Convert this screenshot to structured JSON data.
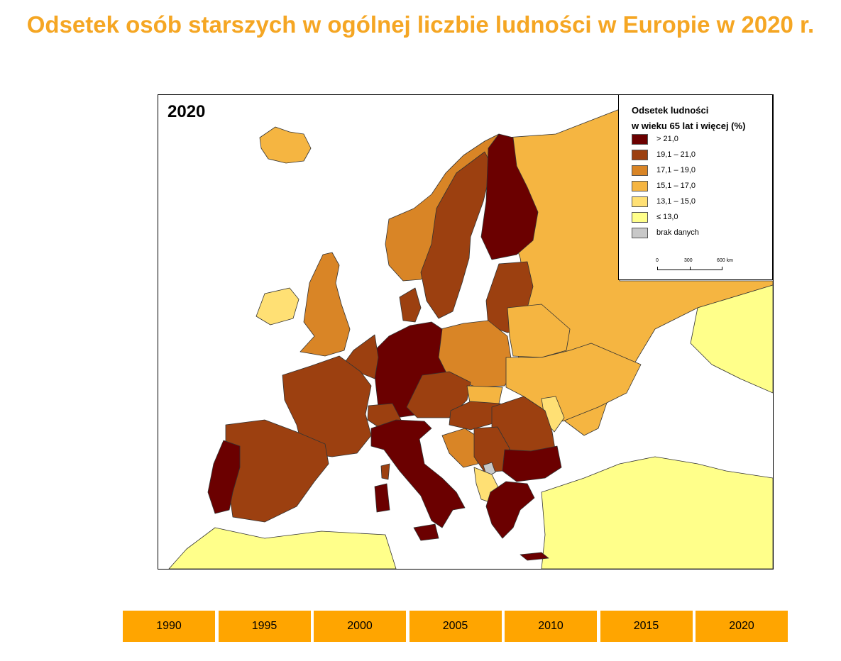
{
  "title": "Odsetek osób starszych w ogólnej liczbie ludności w Europie w 2020 r.",
  "map": {
    "year_label": "2020",
    "legend": {
      "title_line1": "Odsetek ludności",
      "title_line2": "w wieku 65 lat i więcej (%)",
      "classes": [
        {
          "label": "> 21,0",
          "color": "#6b0000"
        },
        {
          "label": "19,1 – 21,0",
          "color": "#9c4010"
        },
        {
          "label": "17,1 – 19,0",
          "color": "#d98526"
        },
        {
          "label": "15,1 – 17,0",
          "color": "#f5b541"
        },
        {
          "label": "13,1 – 15,0",
          "color": "#ffe074"
        },
        {
          "label": "≤ 13,0",
          "color": "#ffff8a"
        },
        {
          "label": "brak danych",
          "color": "#c8c8c8"
        }
      ],
      "scale": {
        "labels": [
          "0",
          "300",
          "600 km"
        ]
      }
    }
  },
  "year_buttons": [
    {
      "label": "1990"
    },
    {
      "label": "1995"
    },
    {
      "label": "2000"
    },
    {
      "label": "2005"
    },
    {
      "label": "2010"
    },
    {
      "label": "2015"
    },
    {
      "label": "2020"
    }
  ]
}
